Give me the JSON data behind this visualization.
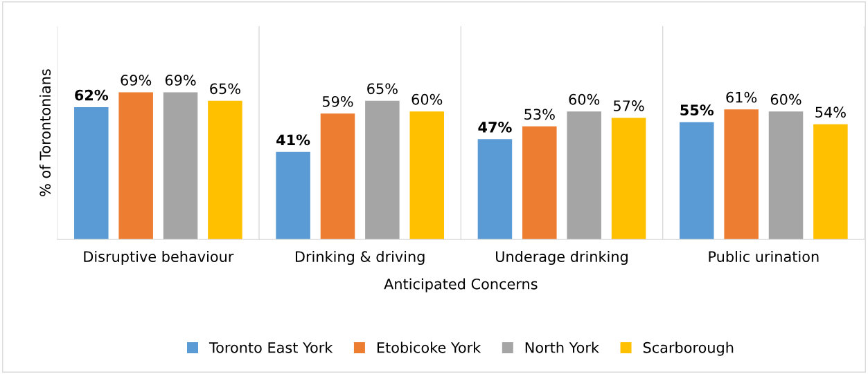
{
  "chart_data": {
    "type": "bar",
    "xlabel": "Anticipated Concerns",
    "ylabel": "% of Torontonians",
    "categories": [
      "Disruptive behaviour",
      "Drinking & driving",
      "Underage drinking",
      "Public urination"
    ],
    "series": [
      {
        "name": "Toronto East York",
        "color": "#5b9bd5",
        "values": [
          62,
          41,
          47,
          55
        ],
        "value_labels": [
          "62%",
          "41%",
          "47%",
          "55%"
        ]
      },
      {
        "name": "Etobicoke York",
        "color": "#ed7d31",
        "values": [
          69,
          59,
          53,
          61
        ],
        "value_labels": [
          "69%",
          "59%",
          "53%",
          "61%"
        ]
      },
      {
        "name": "North York",
        "color": "#a5a5a5",
        "values": [
          69,
          65,
          60,
          60
        ],
        "value_labels": [
          "69%",
          "65%",
          "60%",
          "60%"
        ]
      },
      {
        "name": "Scarborough",
        "color": "#ffc000",
        "values": [
          65,
          60,
          57,
          54
        ],
        "value_labels": [
          "65%",
          "60%",
          "57%",
          "54%"
        ]
      }
    ],
    "ylim": [
      0,
      100
    ],
    "tick_labels": "x",
    "grid": false,
    "legend": "bottom"
  }
}
